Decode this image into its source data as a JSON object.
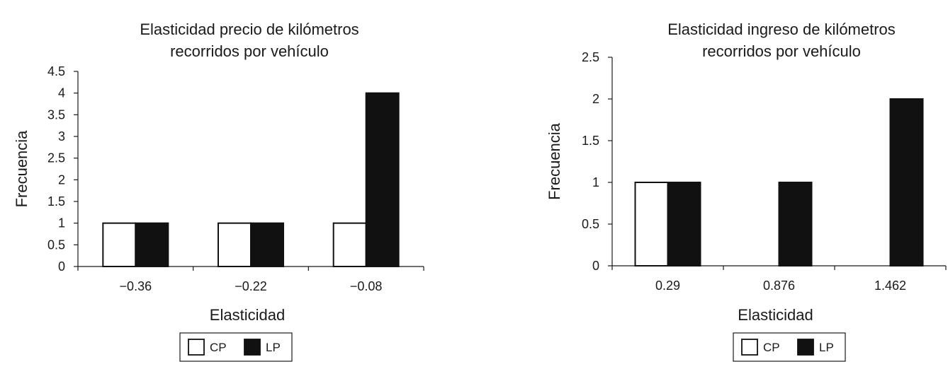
{
  "chart_data": [
    {
      "type": "bar",
      "title_lines": [
        "Elasticidad precio de kilómetros",
        "recorridos por vehículo"
      ],
      "xlabel": "Elasticidad",
      "ylabel": "Frecuencia",
      "categories": [
        "−0.36",
        "−0.22",
        "−0.08"
      ],
      "series": [
        {
          "name": "CP",
          "values": [
            1,
            1,
            1
          ],
          "color": "#ffffff"
        },
        {
          "name": "LP",
          "values": [
            1,
            1,
            4
          ],
          "color": "#111111"
        }
      ],
      "ylim": [
        0,
        4.5
      ],
      "yticks": [
        "0",
        "0.5",
        "1",
        "1.5",
        "2",
        "2.5",
        "3",
        "3.5",
        "4",
        "4.5"
      ],
      "ytick_values": [
        0,
        0.5,
        1,
        1.5,
        2,
        2.5,
        3,
        3.5,
        4,
        4.5
      ],
      "grid": false,
      "legend": "bottom"
    },
    {
      "type": "bar",
      "title_lines": [
        "Elasticidad ingreso de kilómetros",
        "recorridos por vehículo"
      ],
      "xlabel": "Elasticidad",
      "ylabel": "Frecuencia",
      "categories": [
        "0.29",
        "0.876",
        "1.462"
      ],
      "series": [
        {
          "name": "CP",
          "values": [
            1,
            0,
            0
          ],
          "color": "#ffffff"
        },
        {
          "name": "LP",
          "values": [
            1,
            1,
            2
          ],
          "color": "#111111"
        }
      ],
      "ylim": [
        0,
        2.5
      ],
      "yticks": [
        "0",
        "0.5",
        "1",
        "1.5",
        "2",
        "2.5"
      ],
      "ytick_values": [
        0,
        0.5,
        1,
        1.5,
        2,
        2.5
      ],
      "grid": false,
      "legend": "bottom"
    }
  ]
}
